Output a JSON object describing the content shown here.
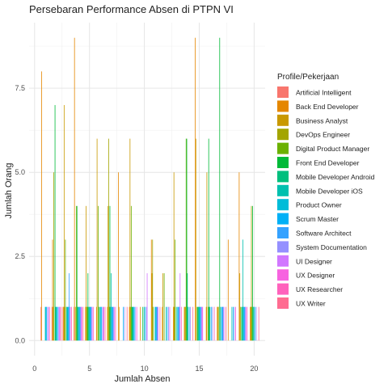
{
  "chart_data": {
    "type": "bar",
    "title": "Persebaran Performance Absen  di PTPN VI",
    "xlabel": "Jumlah Absen",
    "ylabel": "Jumlah Orang",
    "xlim": [
      -0.5,
      21
    ],
    "ylim": [
      -0.45,
      9.45
    ],
    "x_ticks": [
      0,
      5,
      10,
      15,
      20
    ],
    "x_tick_labels": [
      "0",
      "5",
      "10",
      "15",
      "20"
    ],
    "y_ticks": [
      0,
      2.5,
      5,
      7.5
    ],
    "y_tick_labels": [
      "0.0",
      "2.5",
      "5.0",
      "7.5"
    ],
    "grid": true,
    "legend_title": "Profile/Pekerjaan",
    "legend_position": "right",
    "series": [
      {
        "name": "Artificial Intelligent",
        "color": "#F8766D",
        "points": [
          [
            1,
            1
          ],
          [
            2,
            1
          ],
          [
            3,
            1
          ],
          [
            4,
            1
          ]
        ]
      },
      {
        "name": "Back End Developer",
        "color": "#E58700",
        "points": [
          [
            1,
            8
          ],
          [
            2,
            3
          ],
          [
            3,
            1
          ],
          [
            4,
            9
          ],
          [
            5,
            1
          ],
          [
            6,
            1
          ],
          [
            7,
            1
          ],
          [
            8,
            5
          ],
          [
            9,
            1
          ],
          [
            10,
            1
          ],
          [
            11,
            3
          ],
          [
            12,
            1
          ],
          [
            13,
            1
          ],
          [
            14,
            1
          ],
          [
            15,
            9
          ],
          [
            16,
            1
          ],
          [
            17,
            1
          ],
          [
            18,
            3
          ],
          [
            19,
            5
          ],
          [
            20,
            1
          ]
        ]
      },
      {
        "name": "Business Analyst",
        "color": "#C99800",
        "points": [
          [
            2,
            1
          ],
          [
            3,
            7
          ],
          [
            5,
            4
          ],
          [
            6,
            6
          ],
          [
            7,
            4
          ],
          [
            8,
            1
          ],
          [
            9,
            6
          ],
          [
            11,
            2
          ],
          [
            12,
            2
          ],
          [
            13,
            5
          ],
          [
            14,
            1
          ],
          [
            15,
            6
          ],
          [
            16,
            5
          ],
          [
            17,
            1
          ],
          [
            19,
            2
          ],
          [
            20,
            1
          ]
        ]
      },
      {
        "name": "DevOps Engineer",
        "color": "#A3A500",
        "points": [
          [
            2,
            5
          ],
          [
            3,
            1
          ],
          [
            4,
            1
          ],
          [
            5,
            1
          ],
          [
            7,
            6
          ],
          [
            9,
            1
          ],
          [
            11,
            3
          ],
          [
            13,
            1
          ],
          [
            14,
            1
          ],
          [
            17,
            1
          ],
          [
            19,
            1
          ],
          [
            20,
            4
          ]
        ]
      },
      {
        "name": "Digital Product Manager",
        "color": "#6BB100",
        "points": [
          [
            3,
            3
          ],
          [
            4,
            4
          ],
          [
            5,
            1
          ],
          [
            6,
            4
          ],
          [
            7,
            1
          ],
          [
            9,
            4
          ],
          [
            11,
            1
          ],
          [
            12,
            2
          ],
          [
            13,
            3
          ],
          [
            14,
            6
          ],
          [
            15,
            1
          ],
          [
            16,
            1
          ],
          [
            20,
            1
          ]
        ]
      },
      {
        "name": "Front End Developer",
        "color": "#00BA38",
        "points": [
          [
            2,
            7
          ],
          [
            4,
            4
          ],
          [
            5,
            2
          ],
          [
            6,
            1
          ],
          [
            7,
            4
          ],
          [
            9,
            1
          ],
          [
            10,
            1
          ],
          [
            14,
            6
          ],
          [
            15,
            1
          ],
          [
            16,
            6
          ],
          [
            17,
            9
          ],
          [
            19,
            1
          ],
          [
            20,
            4
          ]
        ]
      },
      {
        "name": "Mobile Developer Android",
        "color": "#00BF7D",
        "points": [
          [
            2,
            1
          ],
          [
            3,
            1
          ],
          [
            4,
            1
          ],
          [
            5,
            1
          ],
          [
            7,
            1
          ],
          [
            9,
            1
          ],
          [
            13,
            1
          ],
          [
            14,
            2
          ],
          [
            15,
            1
          ],
          [
            16,
            1
          ],
          [
            17,
            1
          ],
          [
            19,
            1
          ],
          [
            20,
            1
          ]
        ]
      },
      {
        "name": "Mobile Developer iOS",
        "color": "#00C0AF",
        "points": [
          [
            1,
            1
          ],
          [
            2,
            1
          ],
          [
            3,
            1
          ],
          [
            4,
            1
          ],
          [
            5,
            1
          ],
          [
            6,
            1
          ],
          [
            7,
            2
          ],
          [
            9,
            1
          ],
          [
            10,
            1
          ],
          [
            11,
            1
          ],
          [
            12,
            1
          ],
          [
            14,
            1
          ],
          [
            15,
            1
          ],
          [
            16,
            1
          ],
          [
            18,
            1
          ],
          [
            19,
            3
          ],
          [
            20,
            1
          ]
        ]
      },
      {
        "name": "Product Owner",
        "color": "#00BCD8",
        "points": [
          [
            1,
            1
          ],
          [
            2,
            1
          ],
          [
            3,
            1
          ],
          [
            4,
            1
          ],
          [
            5,
            1
          ],
          [
            6,
            1
          ],
          [
            7,
            1
          ],
          [
            9,
            1
          ],
          [
            11,
            1
          ],
          [
            13,
            1
          ],
          [
            15,
            1
          ],
          [
            17,
            1
          ],
          [
            19,
            1
          ]
        ]
      },
      {
        "name": "Scrum Master",
        "color": "#00B0F6",
        "points": [
          [
            1,
            1
          ],
          [
            2,
            1
          ],
          [
            3,
            1
          ],
          [
            4,
            1
          ],
          [
            5,
            1
          ],
          [
            6,
            1
          ],
          [
            7,
            1
          ],
          [
            8,
            1
          ],
          [
            9,
            1
          ],
          [
            10,
            1
          ],
          [
            11,
            1
          ],
          [
            12,
            1
          ],
          [
            13,
            1
          ],
          [
            14,
            1
          ],
          [
            15,
            1
          ],
          [
            16,
            1
          ],
          [
            17,
            1
          ],
          [
            18,
            1
          ],
          [
            19,
            1
          ],
          [
            20,
            1
          ]
        ]
      },
      {
        "name": "Software Architect",
        "color": "#35A2FF",
        "points": [
          [
            3,
            2
          ],
          [
            4,
            1
          ],
          [
            5,
            1
          ],
          [
            7,
            1
          ],
          [
            11,
            1
          ],
          [
            13,
            1
          ],
          [
            15,
            1
          ],
          [
            17,
            1
          ],
          [
            19,
            1
          ]
        ]
      },
      {
        "name": "System Documentation",
        "color": "#9590FF",
        "points": [
          [
            1,
            1
          ],
          [
            2,
            1
          ],
          [
            3,
            1
          ],
          [
            4,
            1
          ],
          [
            5,
            1
          ],
          [
            6,
            1
          ],
          [
            7,
            1
          ],
          [
            8,
            1
          ],
          [
            9,
            1
          ],
          [
            10,
            1
          ],
          [
            11,
            1
          ],
          [
            12,
            1
          ],
          [
            13,
            1
          ],
          [
            14,
            1
          ],
          [
            15,
            1
          ],
          [
            16,
            1
          ],
          [
            17,
            1
          ],
          [
            18,
            1
          ],
          [
            19,
            1
          ],
          [
            20,
            1
          ]
        ]
      },
      {
        "name": "UI Designer",
        "color": "#D177FF",
        "points": [
          [
            1,
            1
          ],
          [
            2,
            1
          ],
          [
            3,
            1
          ],
          [
            4,
            1
          ],
          [
            5,
            1
          ],
          [
            6,
            1
          ],
          [
            7,
            1
          ],
          [
            10,
            2
          ],
          [
            11,
            1
          ],
          [
            13,
            2
          ],
          [
            15,
            1
          ],
          [
            17,
            1
          ],
          [
            19,
            1
          ]
        ]
      },
      {
        "name": "UX Designer",
        "color": "#F763E0",
        "points": [
          [
            2,
            1
          ],
          [
            4,
            1
          ],
          [
            6,
            1
          ],
          [
            9,
            1
          ],
          [
            12,
            1
          ],
          [
            15,
            1
          ],
          [
            18,
            1
          ]
        ]
      },
      {
        "name": "UX Researcher",
        "color": "#FF62BC",
        "points": [
          [
            1,
            1
          ],
          [
            3,
            1
          ],
          [
            5,
            1
          ],
          [
            7,
            1
          ],
          [
            13,
            1
          ],
          [
            16,
            1
          ],
          [
            19,
            1
          ]
        ]
      },
      {
        "name": "UX Writer",
        "color": "#FF6C91",
        "points": [
          [
            2,
            1
          ],
          [
            4,
            1
          ],
          [
            6,
            1
          ],
          [
            8,
            1
          ],
          [
            11,
            1
          ],
          [
            14,
            1
          ],
          [
            17,
            1
          ],
          [
            20,
            1
          ]
        ]
      }
    ]
  }
}
